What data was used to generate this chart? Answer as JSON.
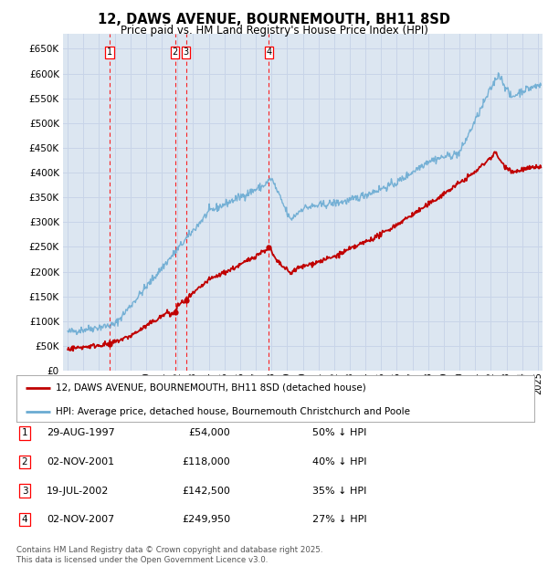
{
  "title": "12, DAWS AVENUE, BOURNEMOUTH, BH11 8SD",
  "subtitle": "Price paid vs. HM Land Registry's House Price Index (HPI)",
  "ylim": [
    0,
    680000
  ],
  "ytick_values": [
    0,
    50000,
    100000,
    150000,
    200000,
    250000,
    300000,
    350000,
    400000,
    450000,
    500000,
    550000,
    600000,
    650000
  ],
  "xlim_start": 1994.7,
  "xlim_end": 2025.3,
  "sale_points": [
    {
      "label": 1,
      "year": 1997.66,
      "price": 54000
    },
    {
      "label": 2,
      "year": 2001.84,
      "price": 118000
    },
    {
      "label": 3,
      "year": 2002.54,
      "price": 142500
    },
    {
      "label": 4,
      "year": 2007.84,
      "price": 249950
    }
  ],
  "hpi_color": "#6aabd2",
  "price_color": "#c00000",
  "vline_color": "#ff0000",
  "grid_color": "#c8d4e8",
  "bg_color": "#dce6f1",
  "legend_label_red": "12, DAWS AVENUE, BOURNEMOUTH, BH11 8SD (detached house)",
  "legend_label_blue": "HPI: Average price, detached house, Bournemouth Christchurch and Poole",
  "footnote": "Contains HM Land Registry data © Crown copyright and database right 2025.\nThis data is licensed under the Open Government Licence v3.0.",
  "table_rows": [
    {
      "num": 1,
      "date": "29-AUG-1997",
      "price": "£54,000",
      "pct": "50% ↓ HPI"
    },
    {
      "num": 2,
      "date": "02-NOV-2001",
      "price": "£118,000",
      "pct": "40% ↓ HPI"
    },
    {
      "num": 3,
      "date": "19-JUL-2002",
      "price": "£142,500",
      "pct": "35% ↓ HPI"
    },
    {
      "num": 4,
      "date": "02-NOV-2007",
      "price": "£249,950",
      "pct": "27% ↓ HPI"
    }
  ]
}
